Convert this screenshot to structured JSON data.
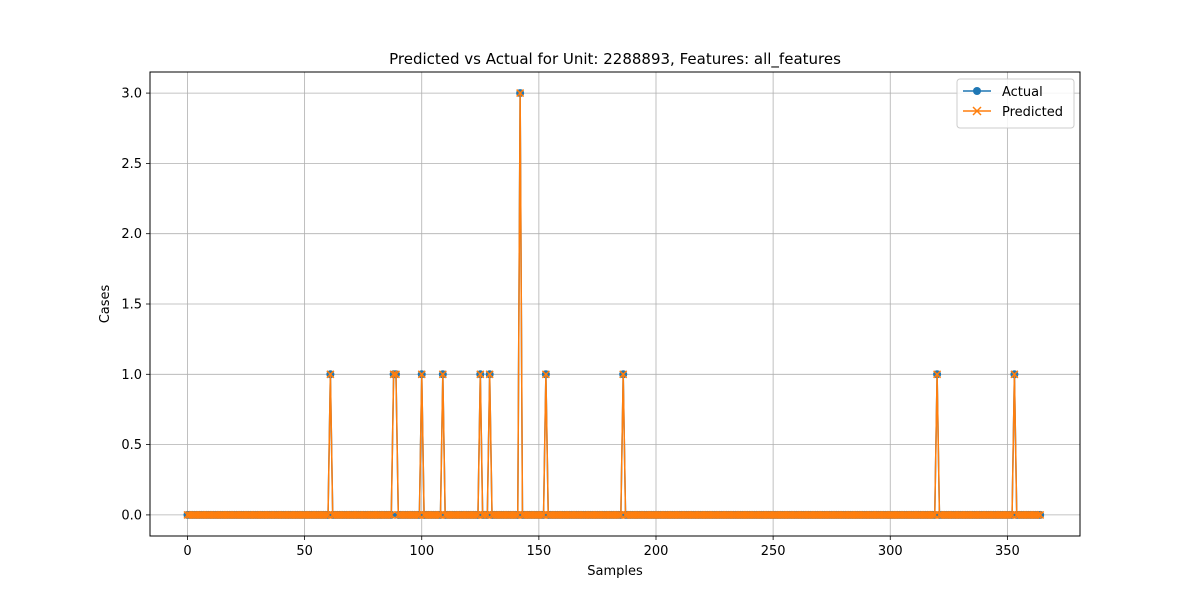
{
  "chart_data": {
    "type": "line",
    "title": "Predicted vs Actual for Unit: 2288893, Features: all_features",
    "xlabel": "Samples",
    "ylabel": "Cases",
    "xlim": [
      -16.0,
      381.0
    ],
    "ylim": [
      -0.15,
      3.15
    ],
    "xticks": [
      0,
      50,
      100,
      150,
      200,
      250,
      300,
      350
    ],
    "yticks": [
      0.0,
      0.5,
      1.0,
      1.5,
      2.0,
      2.5,
      3.0
    ],
    "xtick_labels": [
      "0",
      "50",
      "100",
      "150",
      "200",
      "250",
      "300",
      "350"
    ],
    "ytick_labels": [
      "0.0",
      "0.5",
      "1.0",
      "1.5",
      "2.0",
      "2.5",
      "3.0"
    ],
    "grid": true,
    "legend_position": "top-right",
    "num_samples": 365,
    "nonzero_points": [
      {
        "x": 61,
        "y": 1
      },
      {
        "x": 88,
        "y": 1
      },
      {
        "x": 89,
        "y": 1
      },
      {
        "x": 100,
        "y": 1
      },
      {
        "x": 109,
        "y": 1
      },
      {
        "x": 125,
        "y": 1
      },
      {
        "x": 129,
        "y": 1
      },
      {
        "x": 142,
        "y": 3
      },
      {
        "x": 153,
        "y": 1
      },
      {
        "x": 186,
        "y": 1
      },
      {
        "x": 320,
        "y": 1
      },
      {
        "x": 353,
        "y": 1
      }
    ],
    "series": [
      {
        "name": "Actual",
        "color": "#1f77b4",
        "marker": "circle",
        "source": "nonzero_points"
      },
      {
        "name": "Predicted",
        "color": "#ff7f0e",
        "marker": "x",
        "source": "nonzero_points"
      }
    ]
  }
}
